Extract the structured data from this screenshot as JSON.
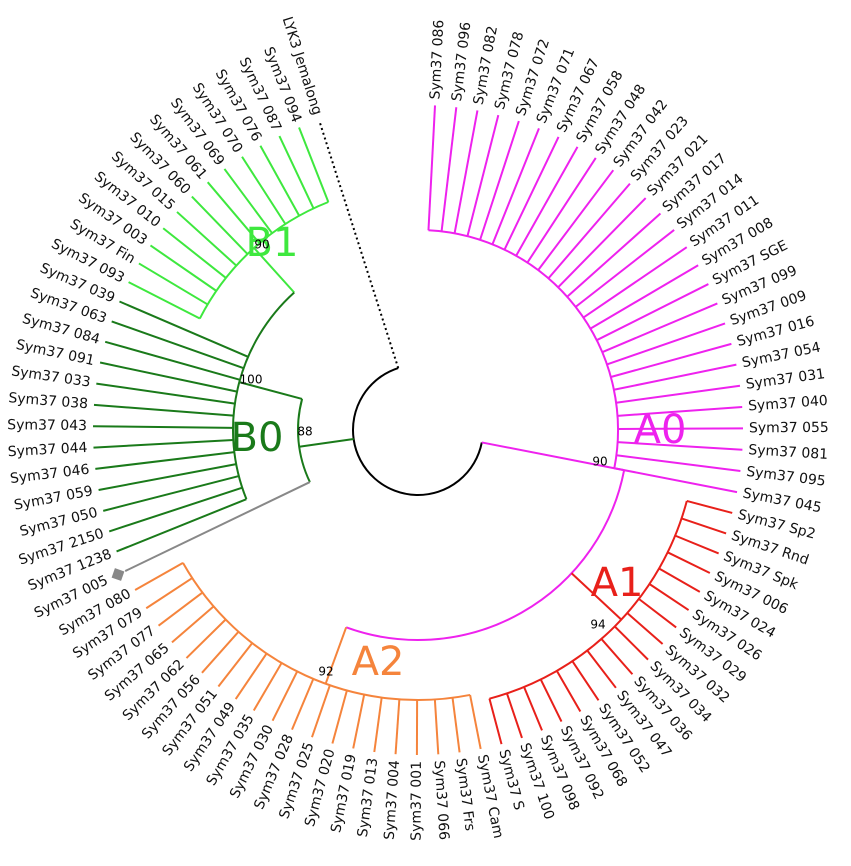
{
  "clades": [
    {
      "label": "A0",
      "support": 90,
      "color": "#ee22ee",
      "leaves": [
        "Sym37 086",
        "Sym37 096",
        "Sym37 082",
        "Sym37 078",
        "Sym37 072",
        "Sym37 071",
        "Sym37 067",
        "Sym37 058",
        "Sym37 048",
        "Sym37 042",
        "Sym37 023",
        "Sym37 021",
        "Sym37 017",
        "Sym37 014",
        "Sym37 011",
        "Sym37 008",
        "Sym37 SGE",
        "Sym37 099",
        "Sym37 009",
        "Sym37 016",
        "Sym37 054",
        "Sym37 031",
        "Sym37 040",
        "Sym37 055",
        "Sym37 081",
        "Sym37 095",
        "Sym37 045"
      ]
    },
    {
      "label": "A1",
      "support": 94,
      "color": "#e8201a",
      "leaves": [
        "Sym37 Sp2",
        "Sym37 Rnd",
        "Sym37 Spk",
        "Sym37 006",
        "Sym37 024",
        "Sym37 026",
        "Sym37 029",
        "Sym37 032",
        "Sym37 034",
        "Sym37 036",
        "Sym37 047",
        "Sym37 052",
        "Sym37 068",
        "Sym37 092",
        "Sym37 098",
        "Sym37 100",
        "Sym37 S"
      ]
    },
    {
      "label": "A2",
      "support": 92,
      "color": "#f5843c",
      "leaves": [
        "Sym37 Cam",
        "Sym37 Frs",
        "Sym37 066",
        "Sym37 001",
        "Sym37 004",
        "Sym37 013",
        "Sym37 019",
        "Sym37 020",
        "Sym37 025",
        "Sym37 028",
        "Sym37 030",
        "Sym37 035",
        "Sym37 049",
        "Sym37 051",
        "Sym37 056",
        "Sym37 062",
        "Sym37 065",
        "Sym37 077",
        "Sym37 079",
        "Sym37 080"
      ]
    },
    {
      "label": "B0",
      "support": 100,
      "color": "#1a7a1a",
      "leaves": [
        "Sym37 1238",
        "Sym37 2150",
        "Sym37 050",
        "Sym37 059",
        "Sym37 046",
        "Sym37 044",
        "Sym37 043",
        "Sym37 038",
        "Sym37 033",
        "Sym37 091",
        "Sym37 084",
        "Sym37 063",
        "Sym37 039"
      ]
    },
    {
      "label": "B1",
      "support": 90,
      "color": "#3ee83e",
      "leaves": [
        "Sym37 093",
        "Sym37 Fin",
        "Sym37 003",
        "Sym37 010",
        "Sym37 015",
        "Sym37 060",
        "Sym37 061",
        "Sym37 069",
        "Sym37 070",
        "Sym37 076",
        "Sym37 087",
        "Sym37 094"
      ]
    }
  ],
  "gray_leaf": "Sym37 005",
  "root_leaf": "LYK3 Jemalong",
  "b_support": 88
}
